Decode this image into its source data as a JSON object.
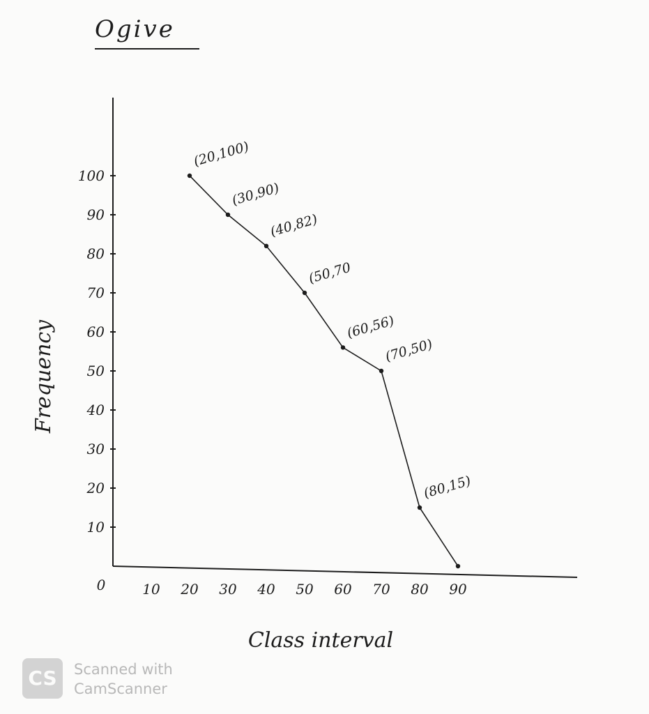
{
  "chart_data": {
    "type": "line",
    "title": "Ogive",
    "xlabel": "Class interval",
    "ylabel": "Frequency",
    "x_ticks": [
      "10",
      "20",
      "30",
      "40",
      "50",
      "60",
      "70",
      "80",
      "90"
    ],
    "y_ticks": [
      "10",
      "20",
      "30",
      "40",
      "50",
      "60",
      "70",
      "80",
      "90",
      "100"
    ],
    "origin_label": "0",
    "xlim": [
      0,
      120
    ],
    "ylim": [
      0,
      125
    ],
    "series": [
      {
        "points": [
          {
            "x": 20,
            "y": 100,
            "label": "(20,100)"
          },
          {
            "x": 30,
            "y": 90,
            "label": "(30,90)"
          },
          {
            "x": 40,
            "y": 82,
            "label": "(40,82)"
          },
          {
            "x": 50,
            "y": 70,
            "label": "(50,70"
          },
          {
            "x": 60,
            "y": 56,
            "label": "(60,56)"
          },
          {
            "x": 70,
            "y": 50,
            "label": "(70,50)"
          },
          {
            "x": 80,
            "y": 15,
            "label": "(80,15)"
          },
          {
            "x": 90,
            "y": 0,
            "label": ""
          }
        ]
      }
    ],
    "grid": false,
    "line_color": "#1c1c1c"
  },
  "watermark": {
    "logo": "CS",
    "line1": "Scanned with",
    "line2": "CamScanner"
  }
}
